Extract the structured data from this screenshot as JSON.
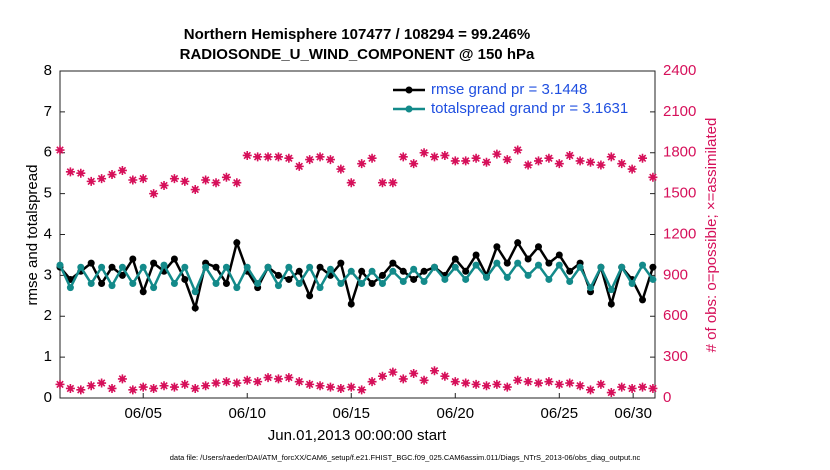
{
  "chart_data": {
    "type": "line",
    "title": "Northern Hemisphere 107477 / 108294 = 99.246%",
    "subtitle": "RADIOSONDE_U_WIND_COMPONENT @ 150 hPa",
    "x_label": "Jun.01,2013 00:00:00 start",
    "y_label": "rmse and totalspread",
    "y2_label": "# of obs: o=possible; ×=assimilated",
    "footnote": "data file: /Users/raeder/DAI/ATM_forcXX/CAM6_setup/f.e21.FHIST_BGC.f09_025.CAM6assim.011/Diags_NTrS_2013-06/obs_diag_output.nc",
    "x": [
      0,
      0.5,
      1,
      1.5,
      2,
      2.5,
      3,
      3.5,
      4,
      4.5,
      5,
      5.5,
      6,
      6.5,
      7,
      7.5,
      8,
      8.5,
      9,
      9.5,
      10,
      10.5,
      11,
      11.5,
      12,
      12.5,
      13,
      13.5,
      14,
      14.5,
      15,
      15.5,
      16,
      16.5,
      17,
      17.5,
      18,
      18.5,
      19,
      19.5,
      20,
      20.5,
      21,
      21.5,
      22,
      22.5,
      23,
      23.5,
      24,
      24.5,
      25,
      25.5,
      26,
      26.5,
      27,
      27.5,
      28,
      28.5
    ],
    "xlim": [
      0,
      28.6
    ],
    "xticks": [
      {
        "value": 4,
        "label": "06/05"
      },
      {
        "value": 9,
        "label": "06/10"
      },
      {
        "value": 14,
        "label": "06/15"
      },
      {
        "value": 19,
        "label": "06/20"
      },
      {
        "value": 24,
        "label": "06/25"
      },
      {
        "value": 27.55,
        "label": "06/30"
      }
    ],
    "ylim": [
      0,
      8
    ],
    "yticks": [
      0,
      1,
      2,
      3,
      4,
      5,
      6,
      7,
      8
    ],
    "y2lim": [
      0,
      2400
    ],
    "y2ticks": [
      0,
      300,
      600,
      900,
      1200,
      1500,
      1800,
      2100,
      2400
    ],
    "legend": "upper right",
    "series": [
      {
        "name": "rmse grand pr = 3.1448",
        "color": "#000000",
        "values": [
          3.2,
          2.9,
          3.1,
          3.3,
          2.8,
          3.2,
          3.0,
          3.4,
          2.6,
          3.3,
          3.1,
          3.4,
          2.9,
          2.2,
          3.3,
          3.2,
          2.8,
          3.8,
          3.1,
          2.7,
          3.2,
          3.0,
          2.9,
          3.1,
          2.5,
          3.2,
          3.0,
          3.3,
          2.3,
          3.1,
          2.8,
          3.0,
          3.3,
          3.1,
          2.9,
          3.1,
          3.2,
          3.0,
          3.4,
          3.1,
          3.5,
          3.0,
          3.7,
          3.3,
          3.8,
          3.4,
          3.7,
          3.3,
          3.5,
          3.1,
          3.3,
          2.6,
          3.2,
          2.3,
          3.2,
          2.9,
          2.4,
          3.2
        ]
      },
      {
        "name": "totalspread grand pr = 3.1631",
        "color": "#138a8a",
        "values": [
          3.25,
          2.7,
          3.2,
          2.8,
          3.2,
          2.75,
          3.2,
          2.8,
          3.2,
          2.7,
          3.25,
          2.8,
          3.2,
          2.6,
          3.2,
          2.8,
          3.2,
          2.7,
          3.2,
          2.8,
          3.2,
          2.75,
          3.2,
          2.8,
          3.2,
          2.7,
          3.15,
          2.8,
          3.1,
          2.8,
          3.1,
          2.8,
          3.1,
          2.85,
          3.15,
          2.85,
          3.2,
          2.9,
          3.2,
          2.9,
          3.25,
          2.95,
          3.3,
          2.95,
          3.3,
          3.0,
          3.25,
          2.9,
          3.25,
          2.85,
          3.2,
          2.7,
          3.2,
          2.65,
          3.2,
          2.8,
          3.25,
          2.9
        ]
      },
      {
        "color": "#d6105a",
        "axis": "y2",
        "values": [
          1820,
          1660,
          1650,
          1590,
          1610,
          1640,
          1670,
          1600,
          1610,
          1500,
          1560,
          1610,
          1590,
          1530,
          1600,
          1580,
          1620,
          1580,
          1780,
          1770,
          1770,
          1770,
          1760,
          1700,
          1750,
          1770,
          1750,
          1680,
          1580,
          1720,
          1760,
          1580,
          1580,
          1770,
          1720,
          1800,
          1770,
          1780,
          1740,
          1740,
          1760,
          1730,
          1790,
          1750,
          1820,
          1710,
          1740,
          1760,
          1720,
          1780,
          1740,
          1730,
          1710,
          1770,
          1720,
          1680,
          1760,
          1620
        ]
      },
      {
        "color": "#d6105a",
        "axis": "y2",
        "values": [
          100,
          70,
          60,
          90,
          110,
          70,
          140,
          60,
          80,
          70,
          90,
          80,
          100,
          70,
          90,
          110,
          120,
          110,
          130,
          120,
          150,
          140,
          150,
          120,
          100,
          90,
          80,
          70,
          80,
          60,
          120,
          160,
          190,
          140,
          180,
          130,
          200,
          160,
          120,
          110,
          100,
          90,
          100,
          80,
          130,
          120,
          110,
          120,
          100,
          110,
          90,
          60,
          100,
          40,
          80,
          70,
          80,
          70
        ]
      }
    ]
  }
}
